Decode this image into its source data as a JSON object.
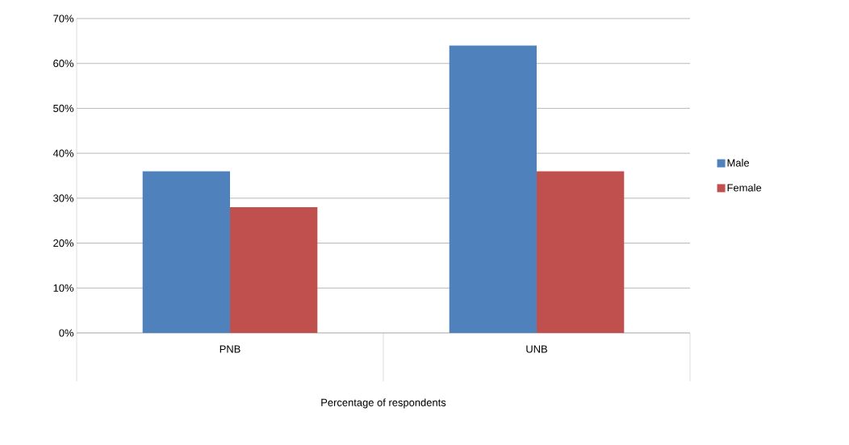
{
  "chart_data": {
    "type": "bar",
    "xlabel": "Percentage of       respondents",
    "categories": [
      "PNB",
      "UNB"
    ],
    "series": [
      {
        "name": "Male",
        "color": "#4f81bd",
        "values": [
          36,
          64
        ]
      },
      {
        "name": "Female",
        "color": "#c0504d",
        "values": [
          28,
          36
        ]
      }
    ],
    "ylim": [
      0,
      70
    ],
    "yticks": [
      {
        "value": 0,
        "label": "0%"
      },
      {
        "value": 10,
        "label": "10%"
      },
      {
        "value": 20,
        "label": "20%"
      },
      {
        "value": 30,
        "label": "30%"
      },
      {
        "value": 40,
        "label": "40%"
      },
      {
        "value": 50,
        "label": "50%"
      },
      {
        "value": 60,
        "label": "60%"
      },
      {
        "value": 70,
        "label": "70%"
      }
    ],
    "grid": "y",
    "legend": "right"
  }
}
